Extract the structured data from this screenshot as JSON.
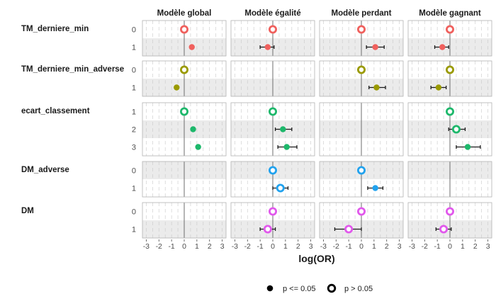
{
  "chart_data": {
    "type": "scatter",
    "xlabel": "log(OR)",
    "ylabel": "",
    "xlim": [
      -3.3,
      3.3
    ],
    "x_ticks": [
      -3,
      -2,
      -1,
      0,
      1,
      2,
      3
    ],
    "grid": true,
    "legend_position": "bottom",
    "panels": [
      "Modèle global",
      "Modèle égalité",
      "Modèle perdant",
      "Modèle gagnant"
    ],
    "variables": [
      {
        "name": "TM_derniere_min",
        "color": "#F0605D",
        "levels": [
          {
            "label": "0",
            "stripe": false,
            "est": [
              0,
              0,
              0,
              0
            ],
            "lo": [
              null,
              null,
              null,
              null
            ],
            "hi": [
              null,
              null,
              null,
              null
            ],
            "sig": [
              false,
              false,
              false,
              false
            ]
          },
          {
            "label": "1",
            "stripe": true,
            "est": [
              0.6,
              -0.4,
              1.1,
              -0.6
            ],
            "lo": [
              null,
              -1.0,
              0.4,
              -1.2
            ],
            "hi": [
              null,
              0.1,
              1.8,
              -0.1
            ],
            "sig": [
              true,
              true,
              true,
              true
            ]
          }
        ]
      },
      {
        "name": "TM_derniere_min_adverse",
        "color": "#9A9A00",
        "levels": [
          {
            "label": "0",
            "stripe": false,
            "est": [
              0,
              null,
              0,
              0
            ],
            "lo": [
              null,
              null,
              null,
              null
            ],
            "hi": [
              null,
              null,
              null,
              null
            ],
            "sig": [
              false,
              false,
              false,
              false
            ]
          },
          {
            "label": "1",
            "stripe": true,
            "est": [
              -0.6,
              null,
              1.2,
              -0.9
            ],
            "lo": [
              null,
              null,
              0.6,
              -1.5
            ],
            "hi": [
              null,
              null,
              1.9,
              -0.3
            ],
            "sig": [
              true,
              true,
              true,
              true
            ]
          }
        ]
      },
      {
        "name": "ecart_classement",
        "color": "#1DB86B",
        "levels": [
          {
            "label": "1",
            "stripe": false,
            "est": [
              0,
              0,
              null,
              0
            ],
            "lo": [
              null,
              null,
              null,
              null
            ],
            "hi": [
              null,
              null,
              null,
              null
            ],
            "sig": [
              false,
              false,
              false,
              false
            ]
          },
          {
            "label": "2",
            "stripe": true,
            "est": [
              0.7,
              0.8,
              null,
              0.5
            ],
            "lo": [
              null,
              0.2,
              null,
              -0.1
            ],
            "hi": [
              null,
              1.5,
              null,
              1.2
            ],
            "sig": [
              true,
              true,
              null,
              false
            ]
          },
          {
            "label": "3",
            "stripe": false,
            "est": [
              1.1,
              1.1,
              null,
              1.4
            ],
            "lo": [
              null,
              0.4,
              null,
              0.5
            ],
            "hi": [
              null,
              1.9,
              null,
              2.4
            ],
            "sig": [
              true,
              true,
              null,
              true
            ]
          }
        ]
      },
      {
        "name": "DM_adverse",
        "color": "#21A2EE",
        "levels": [
          {
            "label": "0",
            "stripe": true,
            "est": [
              null,
              0,
              0,
              null
            ],
            "lo": [
              null,
              null,
              null,
              null
            ],
            "hi": [
              null,
              null,
              null,
              null
            ],
            "sig": [
              null,
              false,
              false,
              null
            ]
          },
          {
            "label": "1",
            "stripe": false,
            "est": [
              null,
              0.6,
              1.1,
              null
            ],
            "lo": [
              null,
              0.0,
              0.5,
              null
            ],
            "hi": [
              null,
              1.2,
              1.7,
              null
            ],
            "sig": [
              null,
              false,
              true,
              null
            ]
          }
        ]
      },
      {
        "name": "DM",
        "color": "#E158EC",
        "levels": [
          {
            "label": "0",
            "stripe": false,
            "est": [
              null,
              0,
              0,
              0
            ],
            "lo": [
              null,
              null,
              null,
              null
            ],
            "hi": [
              null,
              null,
              null,
              null
            ],
            "sig": [
              null,
              false,
              false,
              false
            ]
          },
          {
            "label": "1",
            "stripe": true,
            "est": [
              null,
              -0.4,
              -1.0,
              -0.5
            ],
            "lo": [
              null,
              -1.0,
              -2.1,
              -1.1
            ],
            "hi": [
              null,
              0.2,
              0.0,
              0.1
            ],
            "sig": [
              null,
              false,
              false,
              false
            ]
          }
        ]
      }
    ],
    "legend": [
      {
        "label": "p <= 0.05",
        "filled": true
      },
      {
        "label": "p > 0.05",
        "filled": false
      }
    ]
  }
}
